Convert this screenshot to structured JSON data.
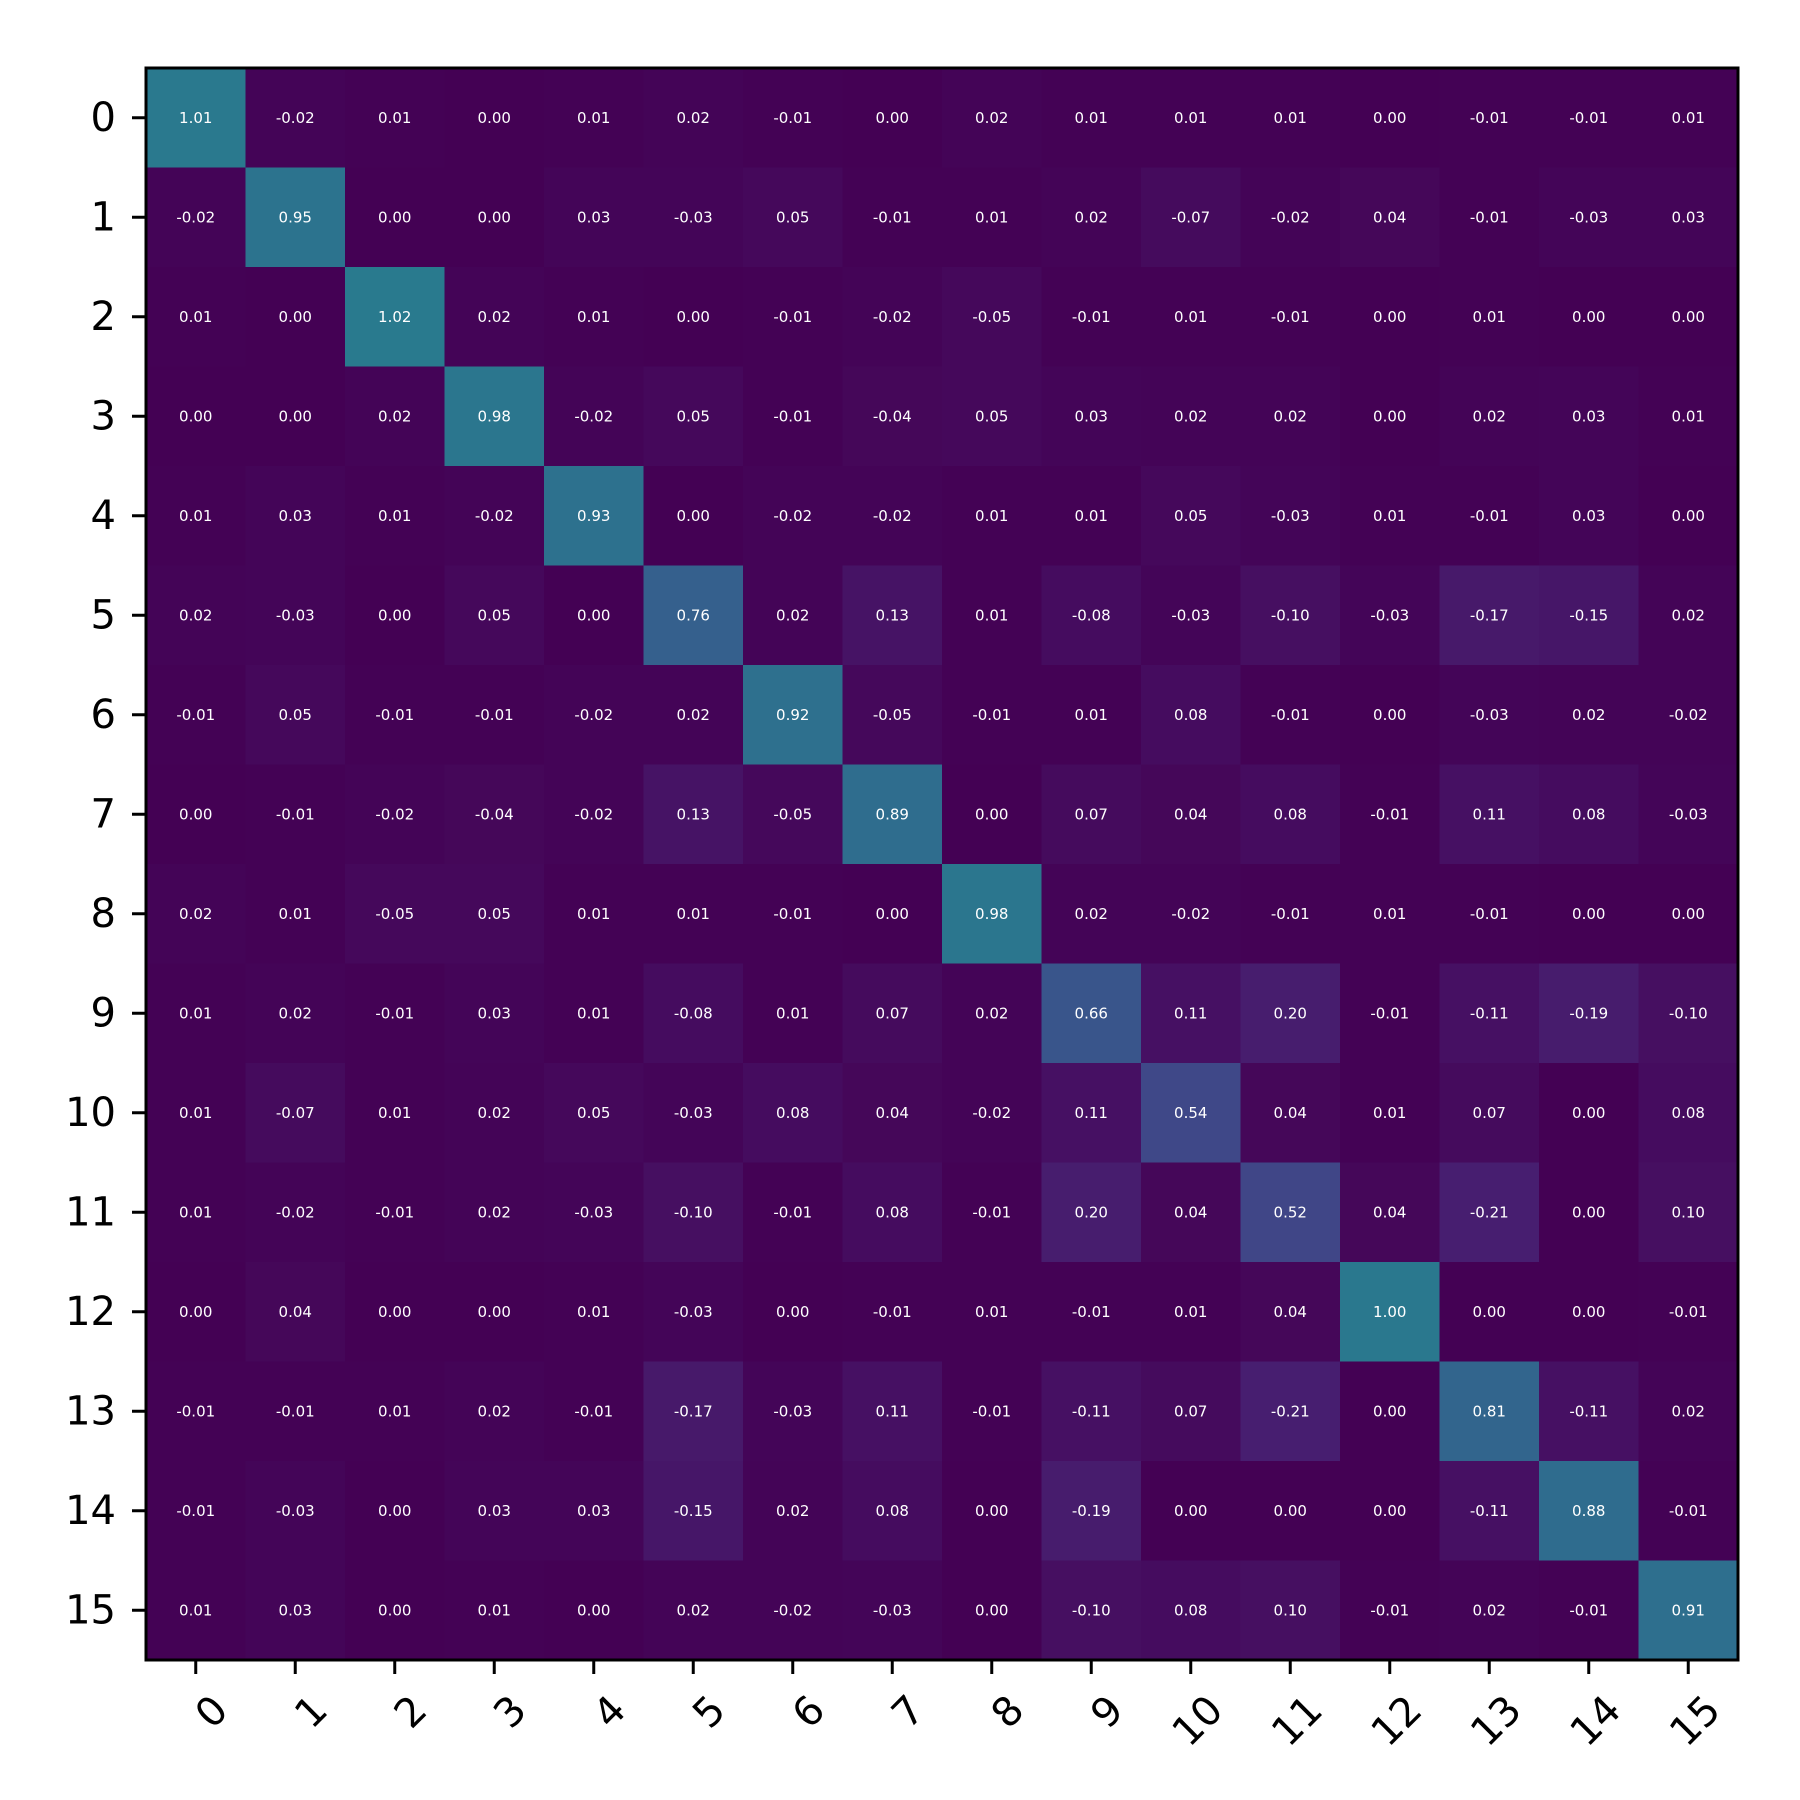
{
  "chart_data": {
    "type": "heatmap",
    "title": "",
    "xlabel": "",
    "ylabel": "",
    "x_labels": [
      "0",
      "1",
      "2",
      "3",
      "4",
      "5",
      "6",
      "7",
      "8",
      "9",
      "10",
      "11",
      "12",
      "13",
      "14",
      "15"
    ],
    "y_labels": [
      "0",
      "1",
      "2",
      "3",
      "4",
      "5",
      "6",
      "7",
      "8",
      "9",
      "10",
      "11",
      "12",
      "13",
      "14",
      "15"
    ],
    "colormap": "viridis",
    "color_range": [
      -2.5,
      2.5
    ],
    "grid": false,
    "legend": "none",
    "values": [
      [
        1.01,
        -0.02,
        0.01,
        -0.0,
        0.01,
        0.02,
        -0.01,
        0.0,
        0.02,
        0.01,
        0.01,
        0.01,
        -0.0,
        -0.01,
        -0.01,
        0.01
      ],
      [
        -0.02,
        0.95,
        0.0,
        -0.0,
        0.03,
        -0.03,
        0.05,
        -0.01,
        0.01,
        0.02,
        -0.07,
        -0.02,
        0.04,
        -0.01,
        -0.03,
        0.03
      ],
      [
        0.01,
        0.0,
        1.02,
        0.02,
        0.01,
        0.0,
        -0.01,
        -0.02,
        -0.05,
        -0.01,
        0.01,
        -0.01,
        -0.0,
        0.01,
        0.0,
        -0.0
      ],
      [
        -0.0,
        -0.0,
        0.02,
        0.98,
        -0.02,
        0.05,
        -0.01,
        -0.04,
        0.05,
        0.03,
        0.02,
        0.02,
        -0.0,
        0.02,
        0.03,
        0.01
      ],
      [
        0.01,
        0.03,
        0.01,
        -0.02,
        0.93,
        0.0,
        -0.02,
        -0.02,
        0.01,
        0.01,
        0.05,
        -0.03,
        0.01,
        -0.01,
        0.03,
        -0.0
      ],
      [
        0.02,
        -0.03,
        0.0,
        0.05,
        0.0,
        0.76,
        0.02,
        0.13,
        0.01,
        -0.08,
        -0.03,
        -0.1,
        -0.03,
        -0.17,
        -0.15,
        0.02
      ],
      [
        -0.01,
        0.05,
        -0.01,
        -0.01,
        -0.02,
        0.02,
        0.92,
        -0.05,
        -0.01,
        0.01,
        0.08,
        -0.01,
        -0.0,
        -0.03,
        0.02,
        -0.02
      ],
      [
        0.0,
        -0.01,
        -0.02,
        -0.04,
        -0.02,
        0.13,
        -0.05,
        0.89,
        0.0,
        0.07,
        0.04,
        0.08,
        -0.01,
        0.11,
        0.08,
        -0.03
      ],
      [
        0.02,
        0.01,
        -0.05,
        0.05,
        0.01,
        0.01,
        -0.01,
        0.0,
        0.98,
        0.02,
        -0.02,
        -0.01,
        0.01,
        -0.01,
        0.0,
        -0.0
      ],
      [
        0.01,
        0.02,
        -0.01,
        0.03,
        0.01,
        -0.08,
        0.01,
        0.07,
        0.02,
        0.66,
        0.11,
        0.2,
        -0.01,
        -0.11,
        -0.19,
        -0.1
      ],
      [
        0.01,
        -0.07,
        0.01,
        0.02,
        0.05,
        -0.03,
        0.08,
        0.04,
        -0.02,
        0.11,
        0.54,
        0.04,
        0.01,
        0.07,
        0.0,
        0.08
      ],
      [
        0.01,
        -0.02,
        -0.01,
        0.02,
        -0.03,
        -0.1,
        -0.01,
        0.08,
        -0.01,
        0.2,
        0.04,
        0.52,
        0.04,
        -0.21,
        -0.0,
        0.1
      ],
      [
        -0.0,
        0.04,
        -0.0,
        -0.0,
        0.01,
        -0.03,
        -0.0,
        -0.01,
        0.01,
        -0.01,
        0.01,
        0.04,
        1.0,
        0.0,
        -0.0,
        -0.01
      ],
      [
        -0.01,
        -0.01,
        0.01,
        0.02,
        -0.01,
        -0.17,
        -0.03,
        0.11,
        -0.01,
        -0.11,
        0.07,
        -0.21,
        0.0,
        0.81,
        -0.11,
        0.02
      ],
      [
        -0.01,
        -0.03,
        0.0,
        0.03,
        0.03,
        -0.15,
        0.02,
        0.08,
        0.0,
        -0.19,
        0.0,
        -0.0,
        -0.0,
        -0.11,
        0.88,
        -0.01
      ],
      [
        0.01,
        0.03,
        -0.0,
        0.01,
        -0.0,
        0.02,
        -0.02,
        -0.03,
        -0.0,
        -0.1,
        0.08,
        0.1,
        -0.01,
        0.02,
        -0.01,
        0.91
      ]
    ]
  }
}
